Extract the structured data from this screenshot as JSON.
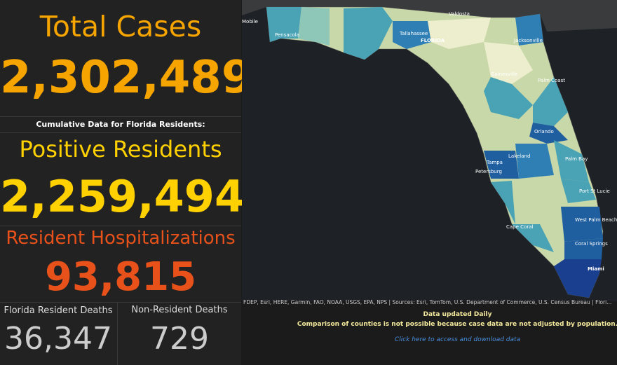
{
  "panels": {
    "total_cases": {
      "title": "Total Cases",
      "value": "2,302,489"
    },
    "subtitle": "Cumulative Data for Florida Residents:",
    "positive_residents": {
      "title": "Positive Residents",
      "value": "2,259,494"
    },
    "hospitalizations": {
      "title": "Resident Hospitalizations",
      "value": "93,815"
    },
    "resident_deaths": {
      "title": "Florida Resident Deaths",
      "value": "36,347"
    },
    "nonresident_deaths": {
      "title": "Non-Resident Deaths",
      "value": "729"
    }
  },
  "map": {
    "labels": [
      "Valdosta",
      "Mobile",
      "Pensacola",
      "Tallahassee",
      "FLORIDA",
      "Jacksonville",
      "Gainesville",
      "Palm Coast",
      "Orlando",
      "Lakeland",
      "Tampa",
      "Petersburg",
      "Palm Bay",
      "Port St Lucie",
      "West Palm Beach",
      "Cape Coral",
      "Coral Springs",
      "Miami"
    ],
    "attribution": "FDEP, Esri, HERE, Garmin, FAO, NOAA, USGS, EPA, NPS | Sources: Esri, TomTom, U.S. Department of Commerce, U.S. Census Bureau | Flori..."
  },
  "footer": {
    "updated": "Data updated Daily",
    "note": "Comparison of counties is not possible because case data are not adjusted by population.",
    "link": "Click here to access and download data"
  }
}
